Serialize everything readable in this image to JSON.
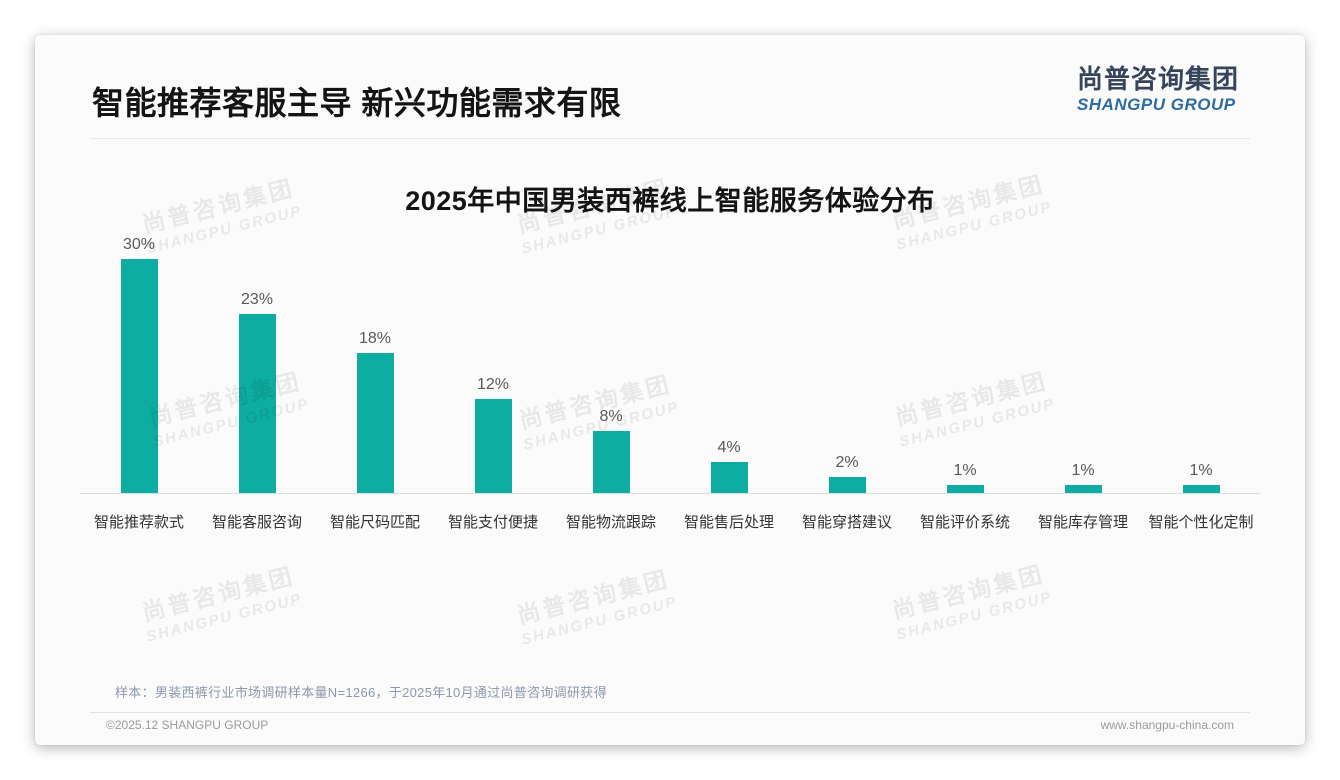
{
  "page": {
    "title": "智能推荐客服主导 新兴功能需求有限",
    "logo": {
      "cn": "尚普咨询集团",
      "en": "SHANGPU GROUP"
    },
    "watermark": {
      "cn": "尚普咨询集团",
      "en": "SHANGPU GROUP"
    },
    "note": "样本：男装西裤行业市场调研样本量N=1266，于2025年10月通过尚普咨询调研获得",
    "footer": {
      "left": "©2025.12 SHANGPU GROUP",
      "right": "www.shangpu-china.com"
    }
  },
  "colors": {
    "bar_teal": "#0dada2",
    "logo_navy": "#36455c",
    "logo_blue": "#2d6ba6",
    "note_gray_blue": "#8c99ad"
  },
  "chart_data": {
    "type": "bar",
    "title": "2025年中国男装西裤线上智能服务体验分布",
    "categories": [
      "智能推荐款式",
      "智能客服咨询",
      "智能尺码匹配",
      "智能支付便捷",
      "智能物流跟踪",
      "智能售后处理",
      "智能穿搭建议",
      "智能评价系统",
      "智能库存管理",
      "智能个性化定制"
    ],
    "values": [
      30,
      23,
      18,
      12,
      8,
      4,
      2,
      1,
      1,
      1
    ],
    "value_labels": [
      "30%",
      "23%",
      "18%",
      "12%",
      "8%",
      "4%",
      "2%",
      "1%",
      "1%",
      "1%"
    ],
    "unit": "%",
    "bar_color": "#0dada2",
    "xlabel": "",
    "ylabel": "",
    "ylim": [
      0,
      32
    ],
    "grid": false,
    "legend": false
  }
}
